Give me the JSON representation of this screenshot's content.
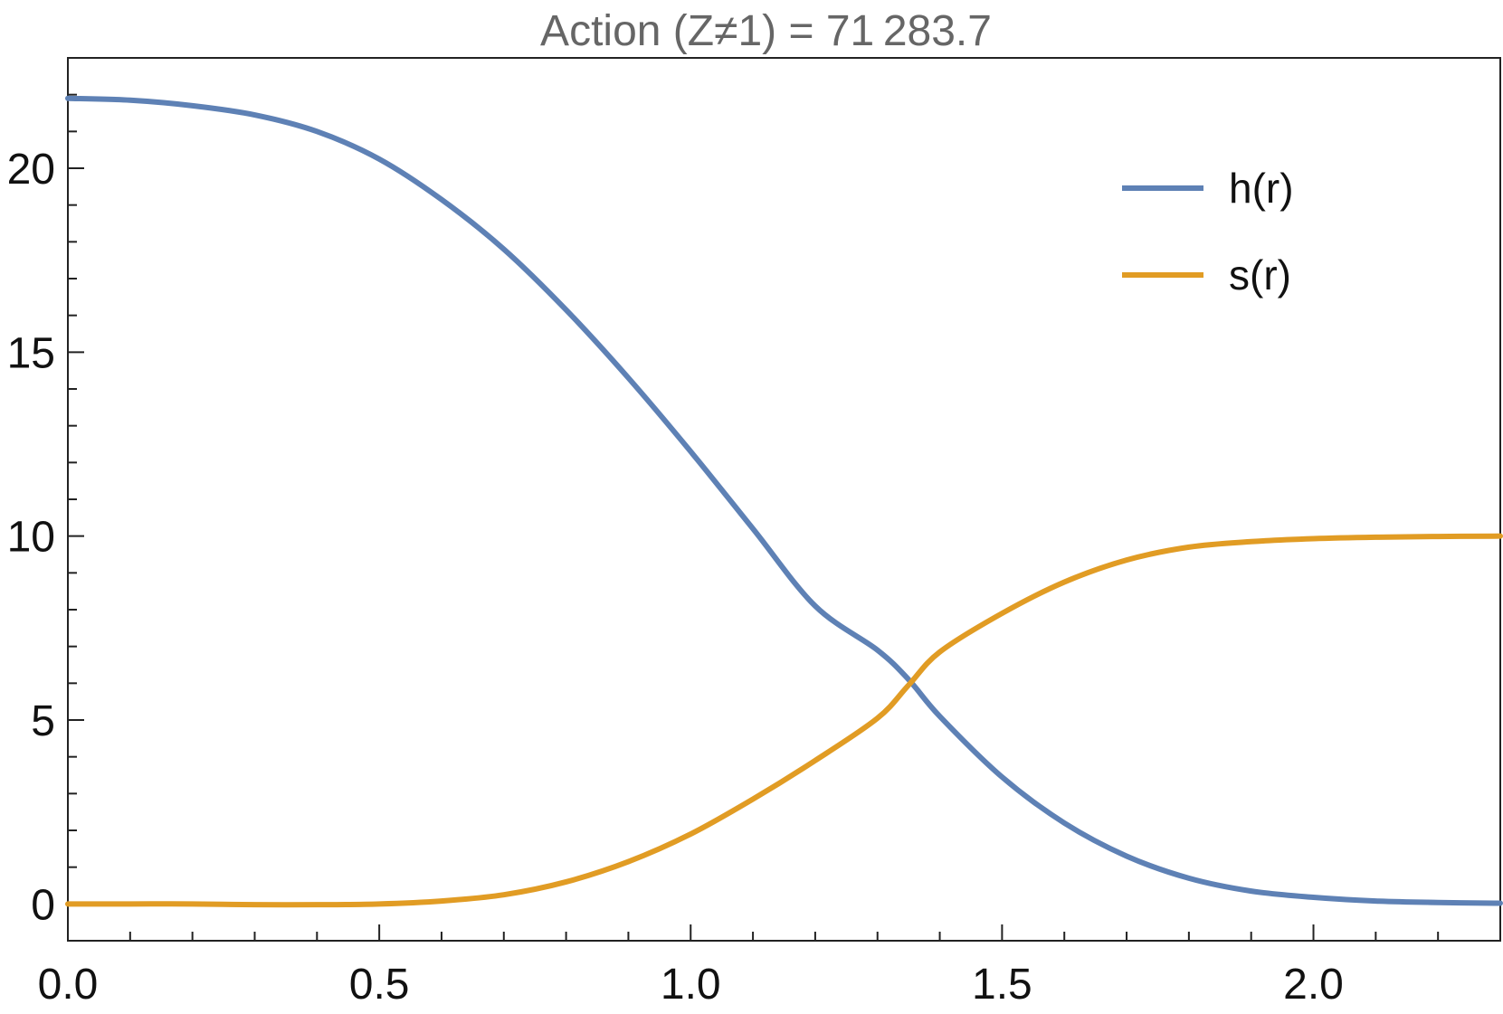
{
  "chart_data": {
    "type": "line",
    "title": "Action (Z≠1) = 71 283.7",
    "xlim": [
      0,
      2.3
    ],
    "ylim": [
      -1,
      23
    ],
    "x_major_ticks": [
      "0.0",
      "0.5",
      "1.0",
      "1.5",
      "2.0"
    ],
    "x_major_values": [
      0,
      0.5,
      1.0,
      1.5,
      2.0
    ],
    "x_minor_step": 0.1,
    "y_major_ticks": [
      "0",
      "5",
      "10",
      "15",
      "20"
    ],
    "y_major_values": [
      0,
      5,
      10,
      15,
      20
    ],
    "y_minor_step": 1,
    "grid": false,
    "legend_position": "top-right",
    "series": [
      {
        "name": "h(r)",
        "color": "#5e81b5",
        "x": [
          0,
          0.1,
          0.2,
          0.3,
          0.4,
          0.5,
          0.6,
          0.7,
          0.8,
          0.9,
          1.0,
          1.1,
          1.2,
          1.3,
          1.35,
          1.4,
          1.5,
          1.6,
          1.7,
          1.8,
          1.9,
          2.0,
          2.1,
          2.2,
          2.3
        ],
        "values": [
          21.9,
          21.85,
          21.7,
          21.45,
          21.0,
          20.25,
          19.15,
          17.8,
          16.15,
          14.3,
          12.3,
          10.2,
          8.1,
          6.9,
          6.1,
          5.1,
          3.45,
          2.2,
          1.3,
          0.7,
          0.35,
          0.18,
          0.08,
          0.04,
          0.02
        ]
      },
      {
        "name": "s(r)",
        "color": "#e19c24",
        "x": [
          0,
          0.1,
          0.2,
          0.3,
          0.4,
          0.5,
          0.6,
          0.7,
          0.8,
          0.9,
          1.0,
          1.1,
          1.2,
          1.3,
          1.35,
          1.4,
          1.5,
          1.6,
          1.7,
          1.8,
          1.9,
          2.0,
          2.1,
          2.2,
          2.3
        ],
        "values": [
          0.0,
          0.0,
          0.0,
          -0.02,
          -0.02,
          0.0,
          0.08,
          0.25,
          0.6,
          1.15,
          1.9,
          2.85,
          3.9,
          5.05,
          5.95,
          6.85,
          7.9,
          8.75,
          9.35,
          9.7,
          9.85,
          9.93,
          9.97,
          9.99,
          10.0
        ]
      }
    ]
  }
}
